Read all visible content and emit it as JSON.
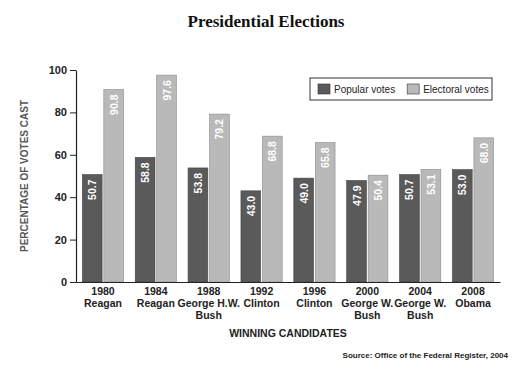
{
  "chart_data": {
    "type": "bar",
    "title": "Presidential Elections",
    "x_label": "WINNING CANDIDATES",
    "y_label": "PERCENTAGE OF VOTES CAST",
    "source": "Source: Office of the Federal Register, 2004",
    "categories": [
      "1980\nReagan",
      "1984\nReagan",
      "1988\nGeorge H.W.\nBush",
      "1992\nClinton",
      "1996\nClinton",
      "2000\nGeorge W.\nBush",
      "2004\nGeorge W.\nBush",
      "2008\nObama"
    ],
    "series": [
      {
        "name": "Popular votes",
        "color": "#5a5a5a",
        "values": [
          50.7,
          58.8,
          53.8,
          43.0,
          49.0,
          47.9,
          50.7,
          53.0
        ],
        "value_labels": [
          "50.7",
          "58.8",
          "53.8",
          "43.0",
          "49.0",
          "47.9",
          "50.7",
          "53.0"
        ]
      },
      {
        "name": "Electoral votes",
        "color": "#b9b9b9",
        "values": [
          90.8,
          97.6,
          79.2,
          68.8,
          65.8,
          50.4,
          53.1,
          68.0
        ],
        "value_labels": [
          "90.8",
          "97.6",
          "79.2",
          "68.8",
          "65.8",
          "50.4",
          "53.1",
          "68.0"
        ]
      }
    ],
    "ylim": [
      0,
      100
    ],
    "yticks": [
      0,
      20,
      40,
      60,
      80,
      100
    ],
    "grid": false,
    "legend": "upper right",
    "data_labels": true
  }
}
